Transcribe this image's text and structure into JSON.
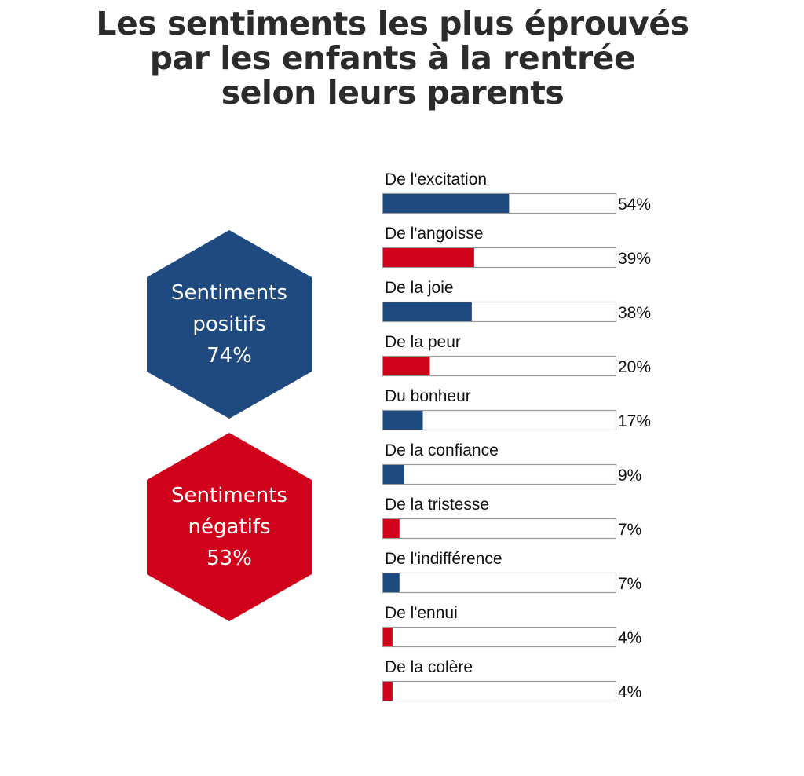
{
  "title": {
    "line1": "Les sentiments les plus éprouvés",
    "line2": "par les enfants à la rentrée",
    "line3": "selon leurs parents"
  },
  "summary": {
    "positive": {
      "label_1": "Sentiments",
      "label_2": "positifs",
      "value": "74%",
      "color": "#1f4a7f"
    },
    "negative": {
      "label_1": "Sentiments",
      "label_2": "négatifs",
      "value": "53%",
      "color": "#d0021b"
    }
  },
  "chart_data": {
    "type": "bar",
    "orientation": "horizontal",
    "xlim": [
      0,
      100
    ],
    "colors": {
      "positive": "#1f4a7f",
      "negative": "#d0021b"
    },
    "categories": [
      "De l'excitation",
      "De l'angoisse",
      "De la joie",
      "De la peur",
      "Du bonheur",
      "De la confiance",
      "De la tristesse",
      "De l'indifférence",
      "De l'ennui",
      "De la colère"
    ],
    "values": [
      54,
      39,
      38,
      20,
      17,
      9,
      7,
      7,
      4,
      4
    ],
    "value_labels": [
      "54%",
      "39%",
      "38%",
      "20%",
      "17%",
      "9%",
      "7%",
      "7%",
      "4%",
      "4%"
    ],
    "sentiment": [
      "positive",
      "negative",
      "positive",
      "negative",
      "positive",
      "positive",
      "negative",
      "positive",
      "negative",
      "negative"
    ]
  }
}
